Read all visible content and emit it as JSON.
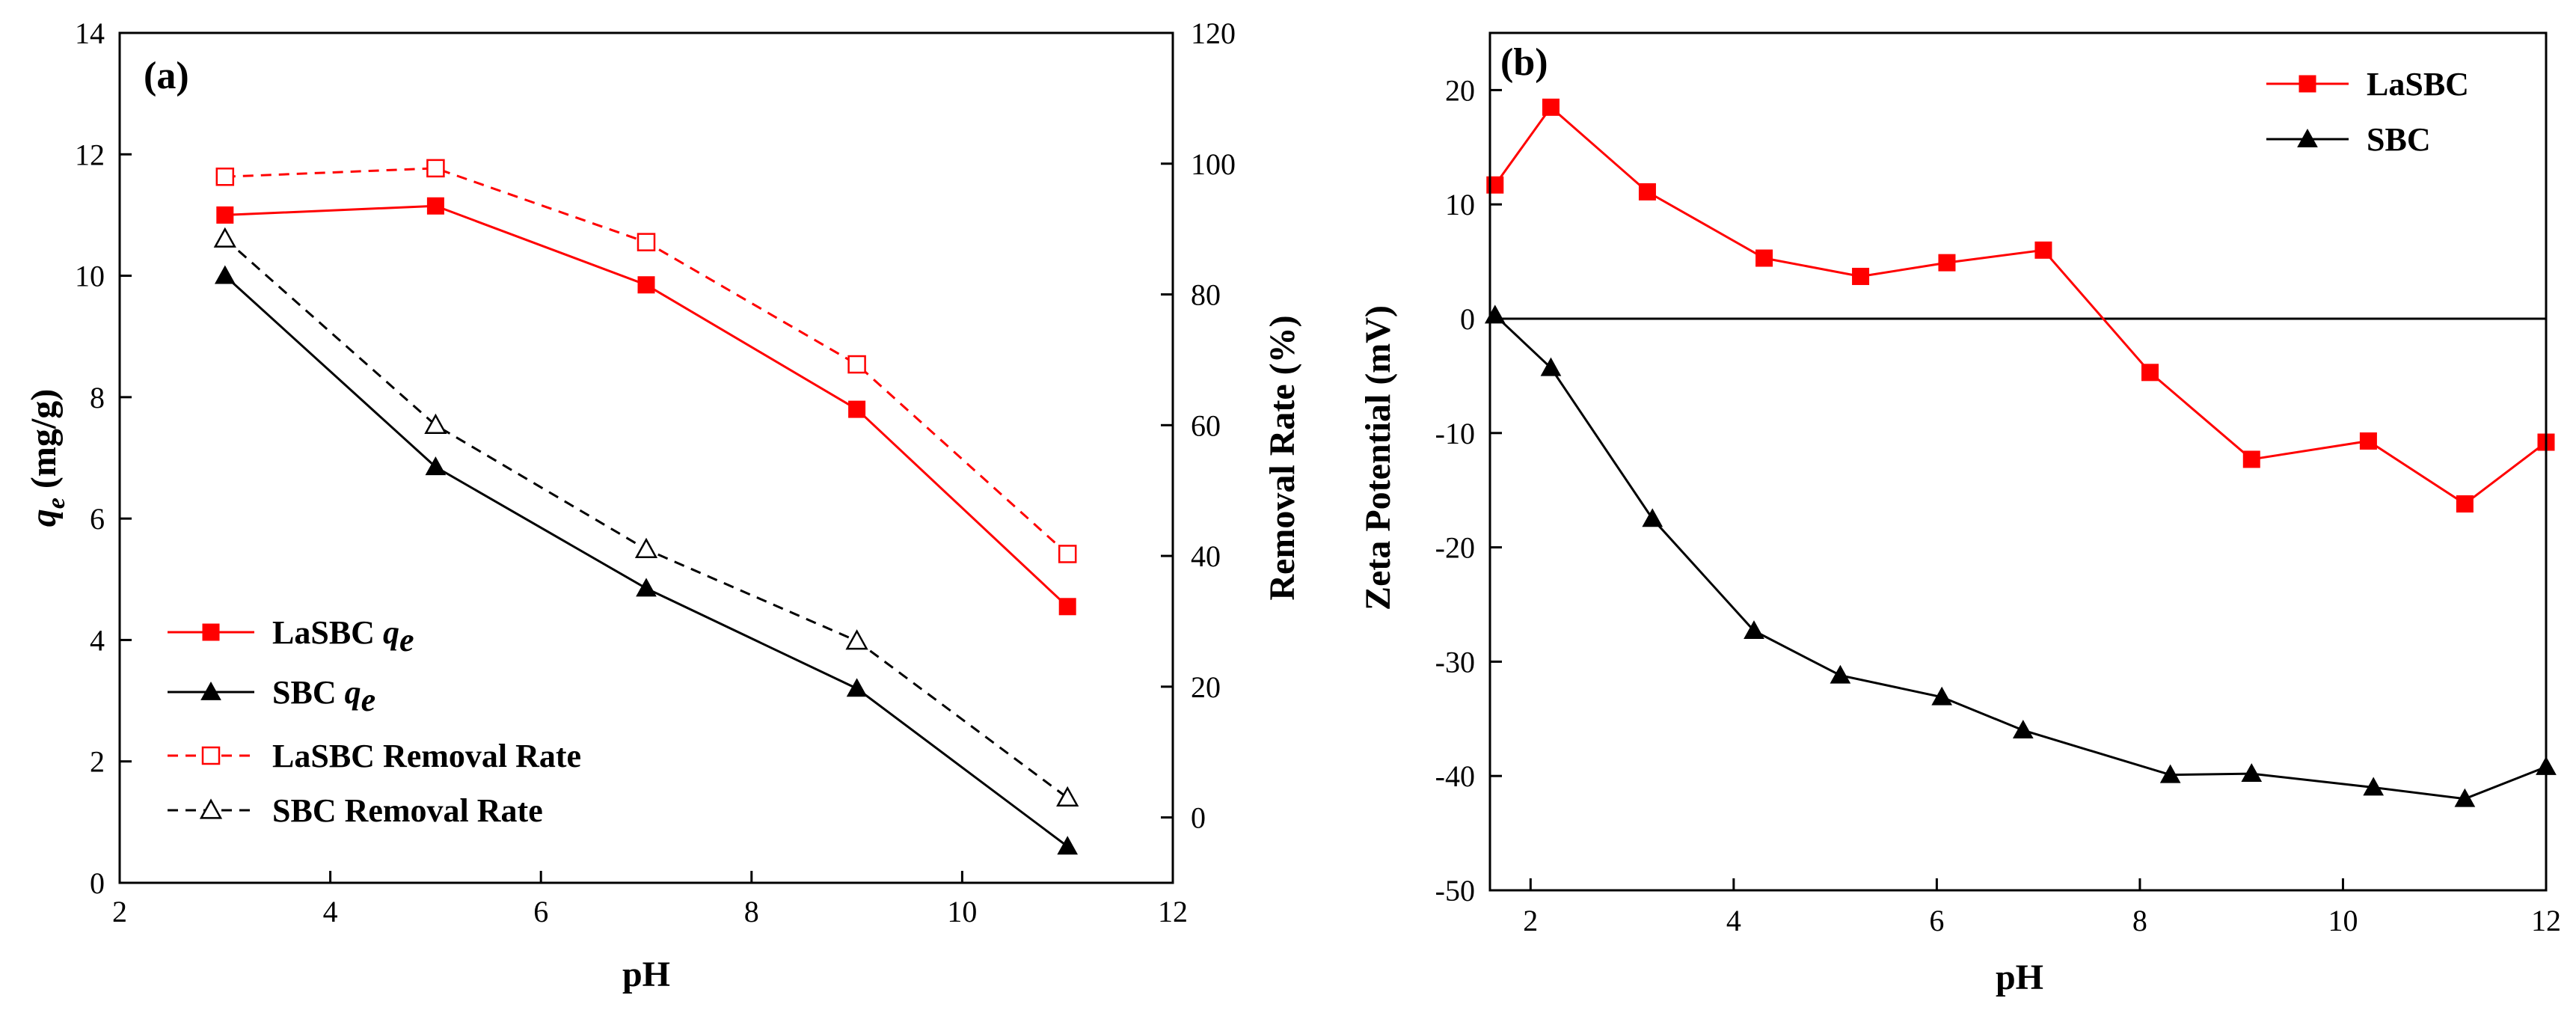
{
  "chart_data": [
    {
      "type": "line",
      "panel_label": "(a)",
      "xlabel": "pH",
      "ylabel_prefix": "q",
      "ylabel_sub": "e",
      "ylabel_suffix": " (mg/g)",
      "y2label": "Removal Rate (%)",
      "xlim": [
        2,
        12
      ],
      "ylim": [
        0,
        14
      ],
      "y2lim": [
        -10,
        120
      ],
      "x_ticks": [
        2,
        4,
        6,
        8,
        10,
        12
      ],
      "y_ticks": [
        0,
        2,
        4,
        6,
        8,
        10,
        12,
        14
      ],
      "y2_ticks": [
        0,
        20,
        40,
        60,
        80,
        100,
        120
      ],
      "legend_position": "bottom-left",
      "series": [
        {
          "name": "LaSBC",
          "label_main": "LaSBC ",
          "label_q": "q",
          "label_sub": "e",
          "axis": "left",
          "color": "#ff0000",
          "marker": "square-filled",
          "dash": false,
          "x": [
            3,
            5,
            7,
            9,
            11
          ],
          "y": [
            11.0,
            11.15,
            9.85,
            7.8,
            4.55
          ]
        },
        {
          "name": "SBC",
          "label_main": "SBC ",
          "label_q": "q",
          "label_sub": "e",
          "axis": "left",
          "color": "#000000",
          "marker": "triangle-filled",
          "dash": false,
          "x": [
            3,
            5,
            7,
            9,
            11
          ],
          "y": [
            10.0,
            6.85,
            4.85,
            3.2,
            0.6
          ]
        },
        {
          "name": "LaSBC Removal Rate",
          "label_main": "LaSBC Removal Rate",
          "axis": "right",
          "color": "#ff0000",
          "marker": "square-open",
          "dash": true,
          "x": [
            3,
            5,
            7,
            9,
            11
          ],
          "y": [
            98,
            99.3,
            88,
            69.3,
            40.3
          ]
        },
        {
          "name": "SBC Removal Rate",
          "label_main": "SBC Removal Rate",
          "axis": "right",
          "color": "#000000",
          "marker": "triangle-open",
          "dash": true,
          "x": [
            3,
            5,
            7,
            9,
            11
          ],
          "y": [
            88.5,
            60,
            41,
            27,
            3
          ]
        }
      ]
    },
    {
      "type": "line",
      "panel_label": "(b)",
      "xlabel": "pH",
      "ylabel": "Zeta Potential (mV)",
      "xlim": [
        1.6,
        12
      ],
      "ylim": [
        -50,
        25
      ],
      "x_ticks": [
        2,
        4,
        6,
        8,
        10,
        12
      ],
      "y_ticks": [
        -50,
        -40,
        -30,
        -20,
        -10,
        0,
        10,
        20
      ],
      "zero_line": true,
      "legend_position": "top-right",
      "series": [
        {
          "name": "LaSBC",
          "color": "#ff0000",
          "marker": "square-filled",
          "x": [
            1.65,
            2.2,
            3.15,
            4.3,
            5.25,
            6.1,
            7.05,
            8.1,
            9.1,
            10.25,
            11.2,
            12.0
          ],
          "y": [
            11.7,
            18.5,
            11.1,
            5.3,
            3.7,
            4.9,
            6.0,
            -4.7,
            -12.3,
            -10.7,
            -16.2,
            -10.8
          ]
        },
        {
          "name": "SBC",
          "color": "#000000",
          "marker": "triangle-filled",
          "x": [
            1.65,
            2.2,
            3.2,
            4.2,
            5.05,
            6.05,
            6.85,
            8.3,
            9.1,
            10.3,
            11.2,
            12.0
          ],
          "y": [
            0.3,
            -4.3,
            -17.5,
            -27.3,
            -31.2,
            -33.1,
            -36.0,
            -39.9,
            -39.8,
            -41.0,
            -42.0,
            -39.2
          ]
        }
      ]
    }
  ]
}
